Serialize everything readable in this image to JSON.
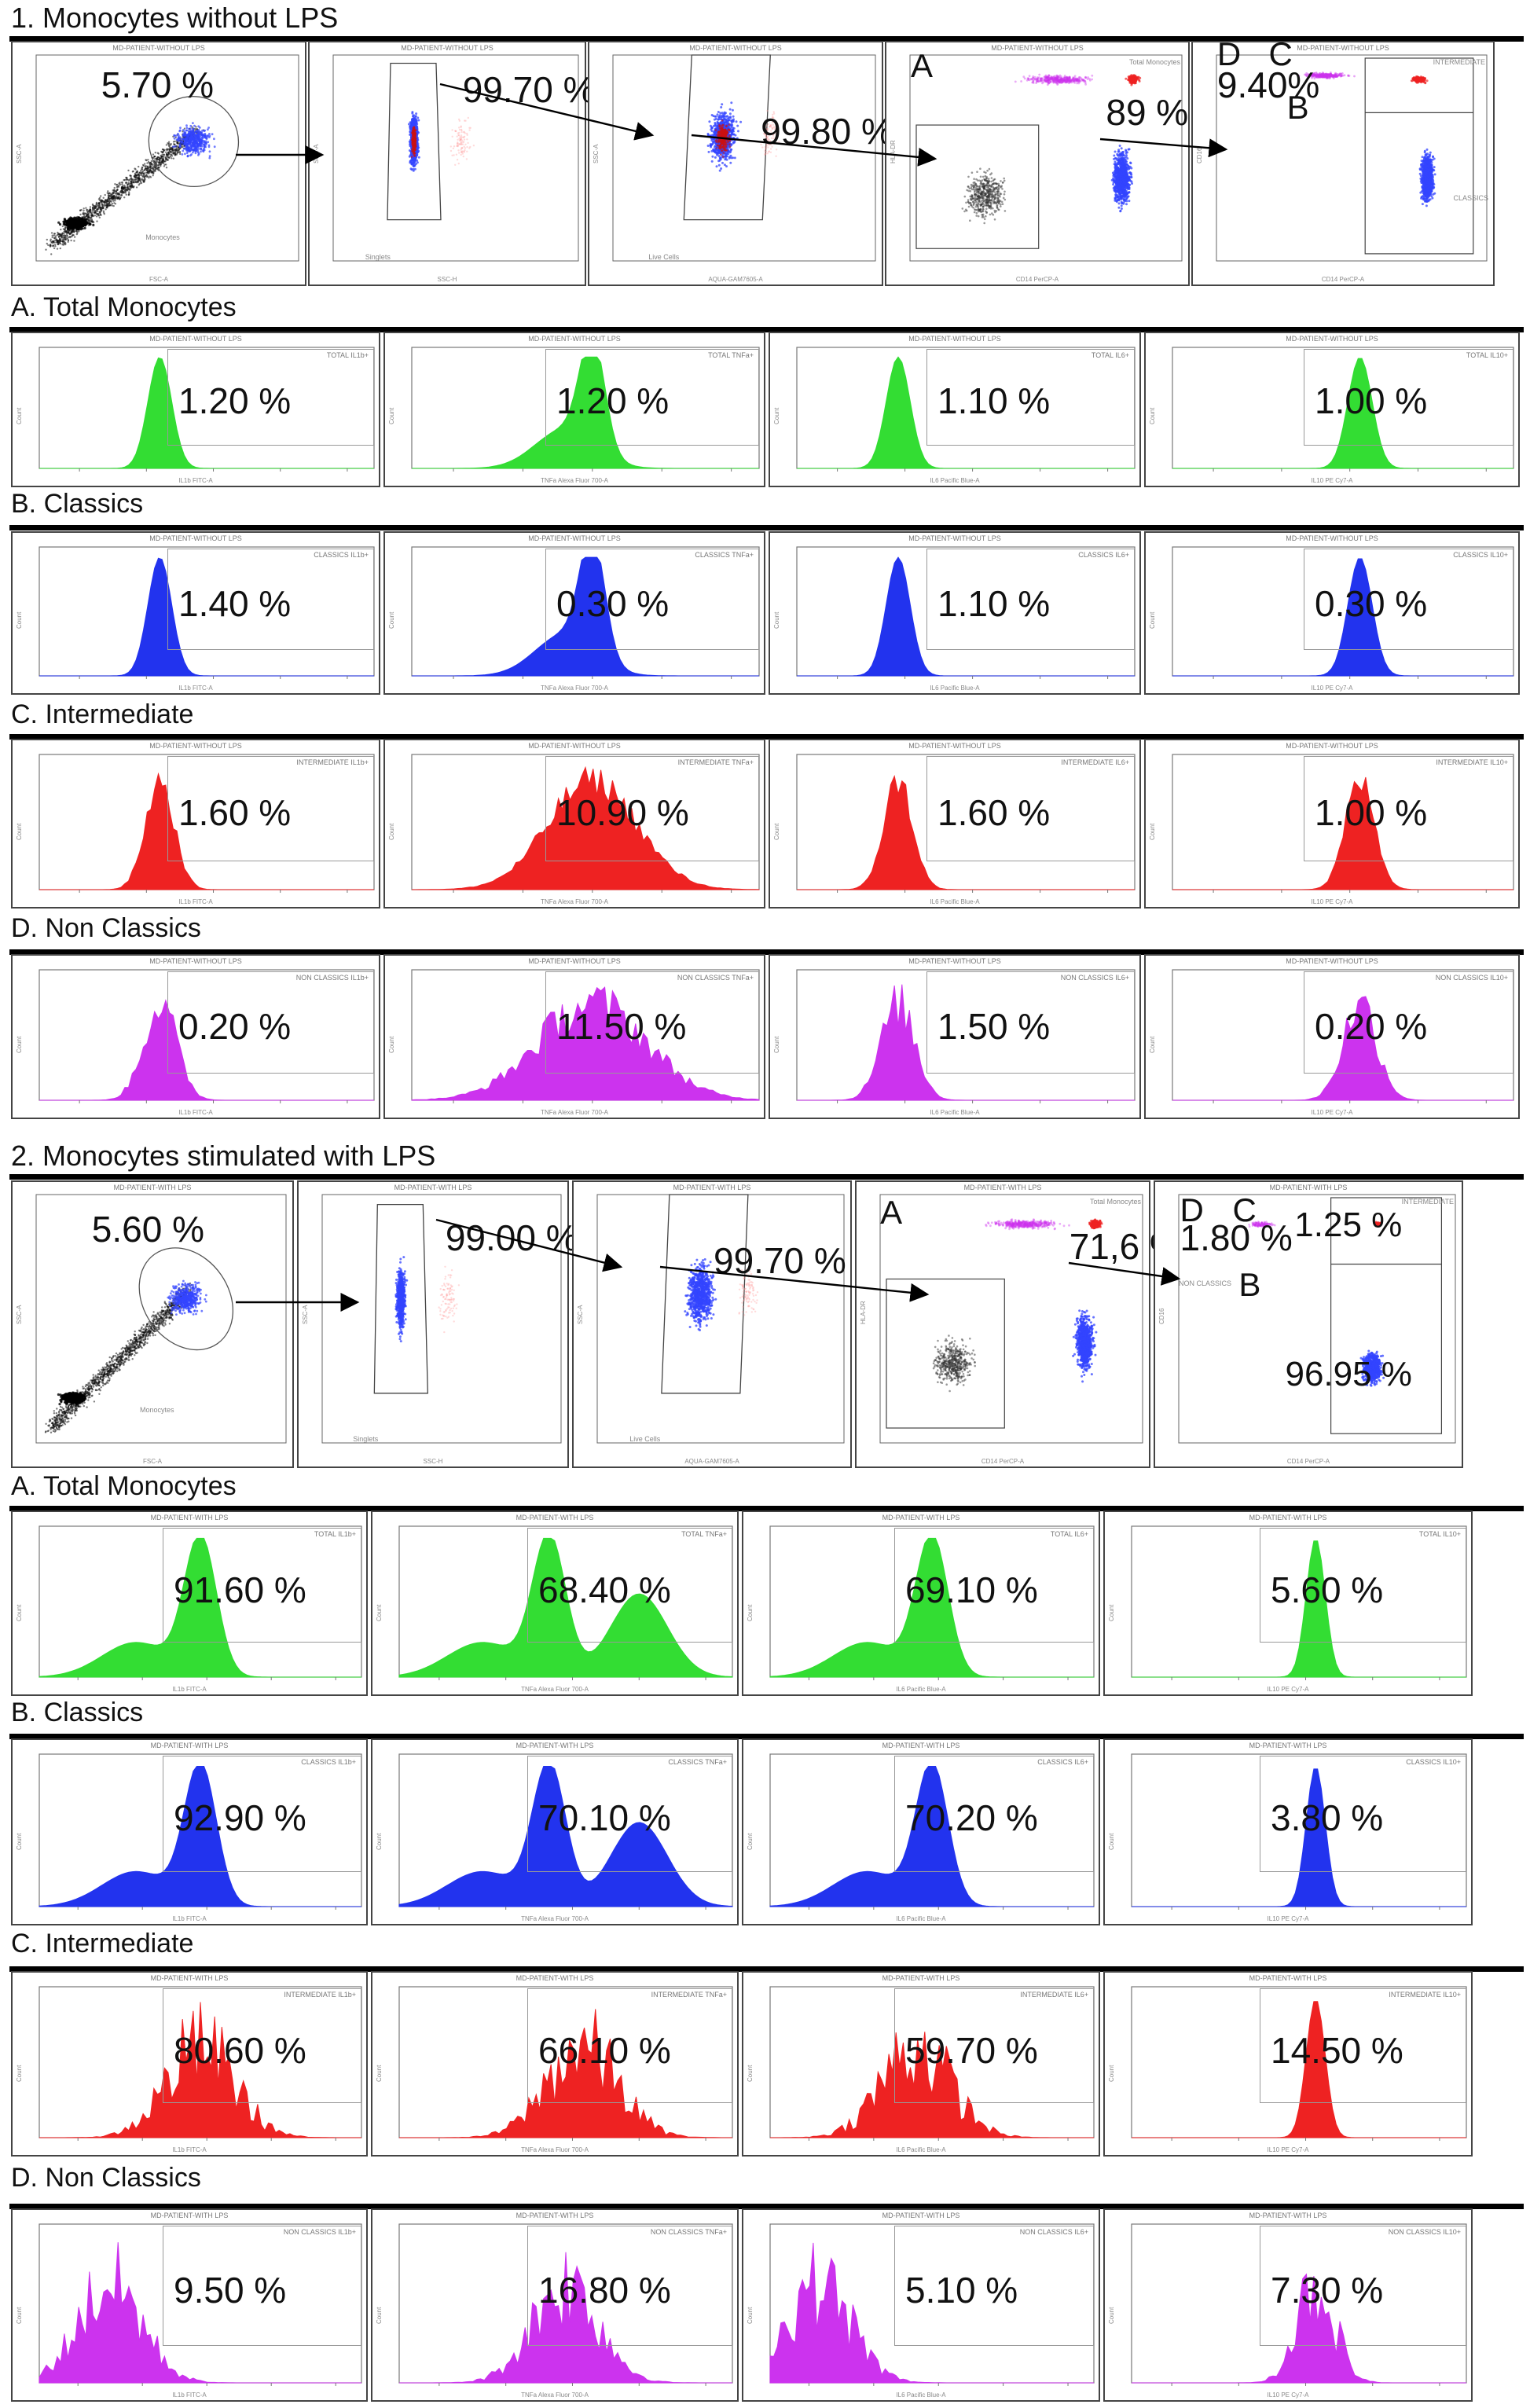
{
  "colors": {
    "green": "#33dd33",
    "blue": "#2233ee",
    "red": "#ee2222",
    "magenta": "#cc33ee",
    "gate_blue": "#3344ff"
  },
  "part1": {
    "heading": "1. Monocytes without LPS",
    "gating": [
      {
        "title": "MD-PATIENT-WITHOUT LPS",
        "pct": "5.70 %",
        "gate_label": "Monocytes",
        "xlabel": "FSC-A",
        "ylabel": "SSC-A"
      },
      {
        "title": "MD-PATIENT-WITHOUT LPS",
        "pct": "99.70 %",
        "gate_label": "Singlets",
        "xlabel": "SSC-H",
        "ylabel": "SSC-A"
      },
      {
        "title": "MD-PATIENT-WITHOUT LPS",
        "pct": "99.80 %",
        "gate_label": "Live Cells",
        "xlabel": "AQUA-GAM7605-A",
        "ylabel": "SSC-A"
      },
      {
        "title": "MD-PATIENT-WITHOUT LPS",
        "pct": "89 %",
        "letters": [
          "A"
        ],
        "gate_label": "Total Monocytes",
        "xlabel": "CD14 PerCP-A",
        "ylabel": "HLA-DR"
      },
      {
        "title": "MD-PATIENT-WITHOUT LPS",
        "pct": "9.40%",
        "letters": [
          "D",
          "C",
          "B"
        ],
        "gate_label": "INTERMEDIATE",
        "gate_label2": "CLASSICS",
        "xlabel": "CD14 PerCP-A",
        "ylabel": "CD16"
      }
    ],
    "sections": [
      {
        "heading": "A. Total Monocytes",
        "color": "green",
        "kind": "total",
        "panels": [
          {
            "title": "MD-PATIENT-WITHOUT LPS",
            "gate": "TOTAL IL1b+",
            "pct": "1.20 %",
            "xlabel": "IL1b FITC-A"
          },
          {
            "title": "MD-PATIENT-WITHOUT LPS",
            "gate": "TOTAL TNFa+",
            "pct": "1.20 %",
            "xlabel": "TNFa Alexa Fluor 700-A"
          },
          {
            "title": "MD-PATIENT-WITHOUT LPS",
            "gate": "TOTAL IL6+",
            "pct": "1.10 %",
            "xlabel": "IL6 Pacific Blue-A"
          },
          {
            "title": "MD-PATIENT-WITHOUT LPS",
            "gate": "TOTAL IL10+",
            "pct": "1.00 %",
            "xlabel": "IL10 PE Cy7-A"
          }
        ]
      },
      {
        "heading": "B. Classics",
        "color": "blue",
        "kind": "classic",
        "panels": [
          {
            "title": "MD-PATIENT-WITHOUT LPS",
            "gate": "CLASSICS IL1b+",
            "pct": "1.40 %",
            "xlabel": "IL1b FITC-A"
          },
          {
            "title": "MD-PATIENT-WITHOUT LPS",
            "gate": "CLASSICS TNFa+",
            "pct": "0.30 %",
            "xlabel": "TNFa Alexa Fluor 700-A"
          },
          {
            "title": "MD-PATIENT-WITHOUT LPS",
            "gate": "CLASSICS IL6+",
            "pct": "1.10 %",
            "xlabel": "IL6 Pacific Blue-A"
          },
          {
            "title": "MD-PATIENT-WITHOUT LPS",
            "gate": "CLASSICS IL10+",
            "pct": "0.30 %",
            "xlabel": "IL10 PE Cy7-A"
          }
        ]
      },
      {
        "heading": "C. Intermediate",
        "color": "red",
        "kind": "inter",
        "panels": [
          {
            "title": "MD-PATIENT-WITHOUT LPS",
            "gate": "INTERMEDIATE IL1b+",
            "pct": "1.60 %",
            "xlabel": "IL1b FITC-A"
          },
          {
            "title": "MD-PATIENT-WITHOUT LPS",
            "gate": "INTERMEDIATE TNFa+",
            "pct": "10.90 %",
            "xlabel": "TNFa Alexa Fluor 700-A"
          },
          {
            "title": "MD-PATIENT-WITHOUT LPS",
            "gate": "INTERMEDIATE IL6+",
            "pct": "1.60 %",
            "xlabel": "IL6 Pacific Blue-A"
          },
          {
            "title": "MD-PATIENT-WITHOUT LPS",
            "gate": "INTERMEDIATE IL10+",
            "pct": "1.00 %",
            "xlabel": "IL10 PE Cy7-A"
          }
        ]
      },
      {
        "heading": "D. Non Classics",
        "color": "magenta",
        "kind": "nonclassic",
        "panels": [
          {
            "title": "MD-PATIENT-WITHOUT LPS",
            "gate": "NON CLASSICS IL1b+",
            "pct": "0.20 %",
            "xlabel": "IL1b FITC-A"
          },
          {
            "title": "MD-PATIENT-WITHOUT LPS",
            "gate": "NON CLASSICS TNFa+",
            "pct": "11.50 %",
            "xlabel": "TNFa Alexa Fluor 700-A"
          },
          {
            "title": "MD-PATIENT-WITHOUT LPS",
            "gate": "NON CLASSICS IL6+",
            "pct": "1.50 %",
            "xlabel": "IL6 Pacific Blue-A"
          },
          {
            "title": "MD-PATIENT-WITHOUT LPS",
            "gate": "NON CLASSICS IL10+",
            "pct": "0.20 %",
            "xlabel": "IL10 PE Cy7-A"
          }
        ]
      }
    ]
  },
  "part2": {
    "heading": "2. Monocytes stimulated with LPS",
    "gating": [
      {
        "title": "MD-PATIENT-WITH LPS",
        "pct": "5.60 %",
        "gate_label": "Monocytes",
        "xlabel": "FSC-A",
        "ylabel": "SSC-A"
      },
      {
        "title": "MD-PATIENT-WITH LPS",
        "pct": "99.00 %",
        "gate_label": "Singlets",
        "xlabel": "SSC-H",
        "ylabel": "SSC-A"
      },
      {
        "title": "MD-PATIENT-WITH LPS",
        "pct": "99.70 %",
        "gate_label": "Live Cells",
        "xlabel": "AQUA-GAM7605-A",
        "ylabel": "SSC-A"
      },
      {
        "title": "MD-PATIENT-WITH LPS",
        "pct": "71,6 %",
        "letters": [
          "A"
        ],
        "gate_label": "Total Monocytes",
        "xlabel": "CD14 PerCP-A",
        "ylabel": "HLA-DR"
      },
      {
        "title": "MD-PATIENT-WITH LPS",
        "pct": "1.80 %",
        "pct2": "1.25 %",
        "pct3": "96.95 %",
        "letters": [
          "D",
          "C",
          "B"
        ],
        "gate_label": "INTERMEDIATE",
        "gate_label2": "NON CLASSICS",
        "xlabel": "CD14 PerCP-A",
        "ylabel": "CD16"
      }
    ],
    "sections": [
      {
        "heading": "A. Total Monocytes",
        "color": "green",
        "kind": "lps_total",
        "panels": [
          {
            "title": "MD-PATIENT-WITH LPS",
            "gate": "TOTAL IL1b+",
            "pct": "91.60 %",
            "xlabel": "IL1b FITC-A"
          },
          {
            "title": "MD-PATIENT-WITH LPS",
            "gate": "TOTAL TNFa+",
            "pct": "68.40 %",
            "xlabel": "TNFa Alexa Fluor 700-A"
          },
          {
            "title": "MD-PATIENT-WITH LPS",
            "gate": "TOTAL IL6+",
            "pct": "69.10 %",
            "xlabel": "IL6 Pacific Blue-A"
          },
          {
            "title": "MD-PATIENT-WITH LPS",
            "gate": "TOTAL IL10+",
            "pct": "5.60 %",
            "xlabel": "IL10 PE Cy7-A"
          }
        ]
      },
      {
        "heading": "B. Classics",
        "color": "blue",
        "kind": "lps_classic",
        "panels": [
          {
            "title": "MD-PATIENT-WITH LPS",
            "gate": "CLASSICS IL1b+",
            "pct": "92.90 %",
            "xlabel": "IL1b FITC-A"
          },
          {
            "title": "MD-PATIENT-WITH LPS",
            "gate": "CLASSICS TNFa+",
            "pct": "70.10 %",
            "xlabel": "TNFa Alexa Fluor 700-A"
          },
          {
            "title": "MD-PATIENT-WITH LPS",
            "gate": "CLASSICS IL6+",
            "pct": "70.20 %",
            "xlabel": "IL6 Pacific Blue-A"
          },
          {
            "title": "MD-PATIENT-WITH LPS",
            "gate": "CLASSICS IL10+",
            "pct": "3.80 %",
            "xlabel": "IL10 PE Cy7-A"
          }
        ]
      },
      {
        "heading": "C. Intermediate",
        "color": "red",
        "kind": "lps_inter",
        "panels": [
          {
            "title": "MD-PATIENT-WITH LPS",
            "gate": "INTERMEDIATE IL1b+",
            "pct": "80.60 %",
            "xlabel": "IL1b FITC-A"
          },
          {
            "title": "MD-PATIENT-WITH LPS",
            "gate": "INTERMEDIATE TNFa+",
            "pct": "66.10 %",
            "xlabel": "TNFa Alexa Fluor 700-A"
          },
          {
            "title": "MD-PATIENT-WITH LPS",
            "gate": "INTERMEDIATE IL6+",
            "pct": "59.70 %",
            "xlabel": "IL6 Pacific Blue-A"
          },
          {
            "title": "MD-PATIENT-WITH LPS",
            "gate": "INTERMEDIATE IL10+",
            "pct": "14.50 %",
            "xlabel": "IL10 PE Cy7-A"
          }
        ]
      },
      {
        "heading": "D. Non Classics",
        "color": "magenta",
        "kind": "lps_nonclassic",
        "panels": [
          {
            "title": "MD-PATIENT-WITH LPS",
            "gate": "NON CLASSICS IL1b+",
            "pct": "9.50 %",
            "xlabel": "IL1b FITC-A"
          },
          {
            "title": "MD-PATIENT-WITH LPS",
            "gate": "NON CLASSICS TNFa+",
            "pct": "16.80 %",
            "xlabel": "TNFa Alexa Fluor 700-A"
          },
          {
            "title": "MD-PATIENT-WITH LPS",
            "gate": "NON CLASSICS IL6+",
            "pct": "5.10 %",
            "xlabel": "IL6 Pacific Blue-A"
          },
          {
            "title": "MD-PATIENT-WITH LPS",
            "gate": "NON CLASSICS IL10+",
            "pct": "7.30 %",
            "xlabel": "IL10 PE Cy7-A"
          }
        ]
      }
    ]
  }
}
